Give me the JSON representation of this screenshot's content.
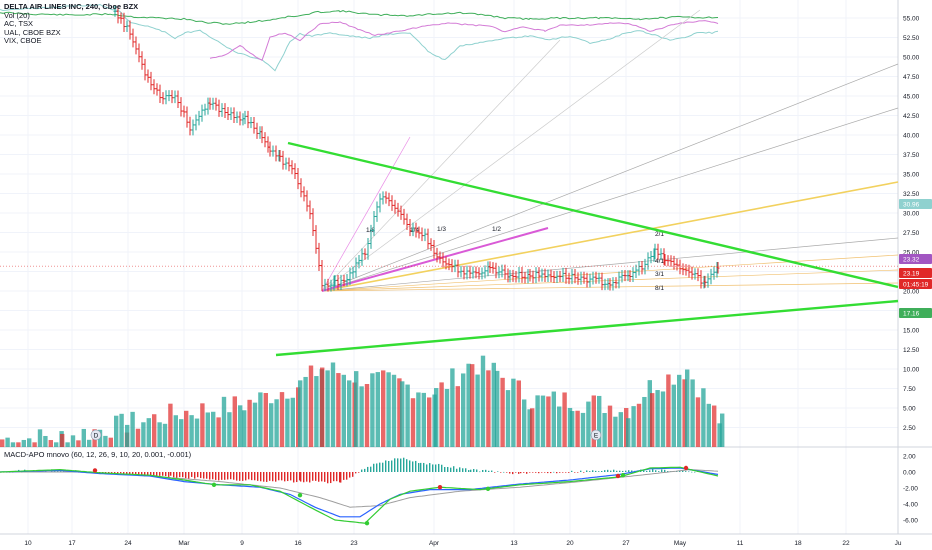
{
  "legend": {
    "title": "DELTA AIR LINES INC, 240, Cboe BZX",
    "vol": "Vol (20)",
    "ac": "AC, TSX",
    "ual": "UAL, CBOE BZX",
    "vix": "VIX, CBOE"
  },
  "macd_title": "MACD-APO mnovo (60, 12, 26, 9, 10, 20, 0.001, -0.001)",
  "price_axis": {
    "ticks": [
      "55.00",
      "52.50",
      "50.00",
      "47.50",
      "45.00",
      "42.50",
      "40.00",
      "37.50",
      "35.00",
      "32.50",
      "30.00",
      "27.50",
      "25.00",
      "22.50",
      "20.00",
      "17.50",
      "15.00",
      "12.50",
      "10.00",
      "7.50",
      "5.00",
      "2.50"
    ],
    "tags": [
      {
        "text": "30.96",
        "color": "#8fd1cf"
      },
      {
        "text": "23.32",
        "color": "#a256c2"
      },
      {
        "text": "23.19",
        "color": "#e02828"
      },
      {
        "text": "01:45:19",
        "color": "#e02828"
      },
      {
        "text": "17.16",
        "color": "#3fae5a"
      }
    ]
  },
  "macd_axis": {
    "ticks": [
      "2.00",
      "0.00",
      "-2.00",
      "-4.00",
      "-6.00"
    ]
  },
  "time_axis": {
    "ticks": [
      "10",
      "17",
      "24",
      "Mar",
      "9",
      "16",
      "23",
      "Apr",
      "13",
      "20",
      "27",
      "May",
      "11",
      "18",
      "22",
      "Ju"
    ]
  },
  "markers": {
    "dividend": "D",
    "earnings": "E"
  },
  "fib_labels": [
    "1/8",
    "1/4",
    "1/3",
    "1/2",
    "2/1",
    "3/1",
    "4/1",
    "8/1"
  ],
  "colors": {
    "price_up": "#26a69a",
    "price_down": "#e02828",
    "trendline": "#33dd33",
    "fan": "#f2d15e",
    "ac_line": "#d37bd6",
    "ual_line": "#8fd1cf",
    "vix_line": "#3fae5a"
  },
  "chart_data": [
    {
      "type": "line",
      "title": "DELTA AIR LINES INC, 240, Cboe BZX",
      "x": [
        "10",
        "17",
        "24",
        "Mar",
        "9",
        "16",
        "23",
        "Apr",
        "13",
        "20",
        "27",
        "May"
      ],
      "series": [
        {
          "name": "AC, TSX",
          "values": [
            null,
            null,
            null,
            null,
            null,
            37,
            30,
            28,
            26,
            27,
            27,
            23
          ]
        },
        {
          "name": "UAL, CBOE BZX",
          "values": [
            29,
            44,
            35,
            41,
            55,
            40,
            34,
            42,
            37,
            36,
            31,
            38
          ]
        },
        {
          "name": "VIX, CBOE",
          "values": [
            12,
            14,
            16,
            17,
            22,
            21,
            12,
            16,
            19,
            19,
            18,
            17
          ]
        },
        {
          "name": "Price",
          "values": [
            null,
            null,
            null,
            52,
            45,
            38,
            21,
            22,
            23,
            22,
            21,
            20
          ]
        }
      ],
      "last_values": {
        "UAL, CBOE BZX": 30.96,
        "AC, TSX": 23.32,
        "Price": 23.19,
        "VIX, CBOE": 17.16
      },
      "ylim": [
        0,
        57
      ]
    },
    {
      "type": "bar",
      "title": "Vol (20)",
      "x": [
        "10",
        "17",
        "24",
        "Mar",
        "9",
        "16",
        "23",
        "Apr",
        "13",
        "20",
        "27",
        "May"
      ],
      "values": [
        1.0,
        1.5,
        2.5,
        3.5,
        4.5,
        5.5,
        8.5,
        6.5,
        7.5,
        6.0,
        5.5,
        4.0
      ]
    },
    {
      "type": "line",
      "title": "MACD-APO mnovo (60, 12, 26, 9, 10, 20, 0.001, -0.001)",
      "x": [
        "10",
        "17",
        "24",
        "Mar",
        "9",
        "16",
        "23",
        "Apr",
        "13",
        "20",
        "27",
        "May"
      ],
      "series": [
        {
          "values": [
            0.0,
            0.1,
            -0.3,
            -1.2,
            -1.6,
            -3.5,
            -5.8,
            -2.4,
            -1.9,
            -1.3,
            -0.2,
            0.3
          ]
        },
        {
          "values": [
            0.0,
            0.0,
            -0.4,
            -1.4,
            -2.0,
            -2.9,
            -4.9,
            -3.0,
            -1.8,
            -1.0,
            -0.5,
            0.5
          ]
        },
        {
          "values": [
            0.0,
            0.0,
            -0.5,
            -1.5,
            -2.0,
            -2.6,
            -4.2,
            -3.2,
            -2.2,
            -1.4,
            -0.6,
            0.2
          ]
        }
      ],
      "ylim": [
        -7,
        3
      ]
    }
  ]
}
